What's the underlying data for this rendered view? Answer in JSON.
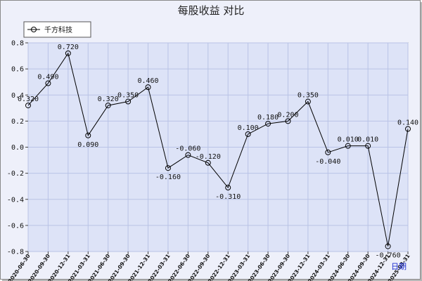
{
  "chart_data": {
    "type": "line",
    "title": "每股收益 对比",
    "xlabel": "",
    "ylabel": "",
    "x_unit_label": "日期",
    "ylim": [
      -0.8,
      0.8
    ],
    "yticks": [
      "0.8",
      "0.6",
      "0.4",
      "0.2",
      "0.0",
      "-0.2",
      "-0.4",
      "-0.6",
      "-0.8"
    ],
    "grid": true,
    "legend_position": "top-left",
    "categories": [
      "2020-06-30",
      "2020-09-30",
      "2020-12-31",
      "2021-03-31",
      "2021-06-30",
      "2021-09-30",
      "2021-12-31",
      "2022-03-31",
      "2022-06-30",
      "2022-09-30",
      "2022-12-31",
      "2023-03-31",
      "2023-06-30",
      "2023-09-30",
      "2023-12-31",
      "2024-03-31",
      "2024-06-30",
      "2024-09-30",
      "2024-12-31",
      "2025-03-31"
    ],
    "series": [
      {
        "name": "千方科技",
        "values": [
          0.32,
          0.49,
          0.72,
          0.09,
          0.32,
          0.35,
          0.46,
          -0.16,
          -0.06,
          -0.12,
          -0.31,
          0.1,
          0.18,
          0.2,
          0.35,
          -0.04,
          0.01,
          0.01,
          -0.76,
          0.14
        ],
        "labels": [
          "0.320",
          "0.490",
          "0.720",
          "0.090",
          "0.320",
          "0.350",
          "0.460",
          "-0.160",
          "-0.060",
          "-0.120",
          "-0.310",
          "0.100",
          "0.180",
          "0.200",
          "0.350",
          "-0.040",
          "0.010",
          "0.010",
          "-0.760",
          "0.140"
        ]
      }
    ],
    "colors": {
      "line": "#000000",
      "plot_bg": "#dde3f7",
      "grid": "#b9c3e6",
      "frame_bg": "#eef0fa"
    }
  }
}
